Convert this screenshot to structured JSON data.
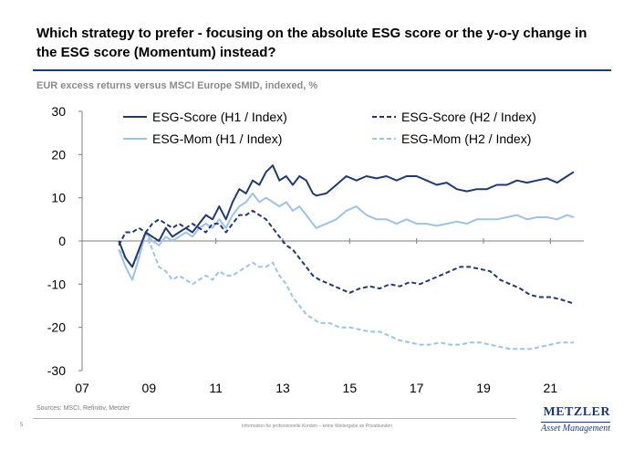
{
  "header": {
    "title": "Which strategy to prefer - focusing on the absolute ESG score or the y-o-y change in the ESG score (Momentum) instead?",
    "subtitle": "EUR excess returns versus MSCI Europe SMID, indexed, %"
  },
  "footer": {
    "sources": "Sources: MSCI, Refinitiv, Metzler",
    "page_number": "5",
    "disclaimer": "Information für professionelle Kunden – keine Weitergabe an Privatkunden",
    "logo_line1": "METZLER",
    "logo_line2": "Asset Management"
  },
  "colors": {
    "dark": "#1f3a73",
    "light": "#9dc3e6",
    "rule": "#1f3a73"
  },
  "chart_data": {
    "type": "line",
    "title": "",
    "xlabel": "",
    "ylabel": "",
    "xlim": [
      2007,
      2022
    ],
    "ylim": [
      -30,
      30
    ],
    "x_ticks": [
      "07",
      "09",
      "11",
      "13",
      "15",
      "17",
      "19",
      "21"
    ],
    "y_ticks": [
      "30",
      "20",
      "10",
      "0",
      "-10",
      "-20",
      "-30"
    ],
    "grid": false,
    "legend": "top",
    "series": [
      {
        "name": "ESG-Score (H1 / Index)",
        "color": "#1f3a73",
        "dashed": false,
        "points": [
          [
            2008.1,
            0
          ],
          [
            2008.3,
            -4
          ],
          [
            2008.5,
            -6
          ],
          [
            2008.7,
            -2
          ],
          [
            2008.9,
            2
          ],
          [
            2009.1,
            1
          ],
          [
            2009.3,
            0
          ],
          [
            2009.5,
            3
          ],
          [
            2009.7,
            1
          ],
          [
            2009.9,
            2
          ],
          [
            2010.1,
            3
          ],
          [
            2010.3,
            2
          ],
          [
            2010.5,
            4
          ],
          [
            2010.7,
            6
          ],
          [
            2010.9,
            5
          ],
          [
            2011.1,
            8
          ],
          [
            2011.3,
            5
          ],
          [
            2011.5,
            9
          ],
          [
            2011.7,
            12
          ],
          [
            2011.9,
            11
          ],
          [
            2012.1,
            14
          ],
          [
            2012.3,
            13
          ],
          [
            2012.5,
            16
          ],
          [
            2012.7,
            17.5
          ],
          [
            2012.9,
            14
          ],
          [
            2013.1,
            15
          ],
          [
            2013.3,
            13
          ],
          [
            2013.5,
            15
          ],
          [
            2013.7,
            14
          ],
          [
            2013.9,
            11
          ],
          [
            2014.0,
            10.5
          ],
          [
            2014.3,
            11
          ],
          [
            2014.6,
            13
          ],
          [
            2014.9,
            15
          ],
          [
            2015.2,
            14
          ],
          [
            2015.5,
            15
          ],
          [
            2015.8,
            14.5
          ],
          [
            2016.1,
            15
          ],
          [
            2016.4,
            14
          ],
          [
            2016.7,
            15
          ],
          [
            2017.0,
            15
          ],
          [
            2017.3,
            14
          ],
          [
            2017.6,
            13
          ],
          [
            2017.9,
            13.5
          ],
          [
            2018.2,
            12
          ],
          [
            2018.5,
            11.5
          ],
          [
            2018.8,
            12
          ],
          [
            2019.1,
            12
          ],
          [
            2019.4,
            13
          ],
          [
            2019.7,
            13
          ],
          [
            2020.0,
            14
          ],
          [
            2020.3,
            13.5
          ],
          [
            2020.6,
            14
          ],
          [
            2020.9,
            14.5
          ],
          [
            2021.2,
            13.5
          ],
          [
            2021.5,
            15
          ],
          [
            2021.7,
            16
          ]
        ]
      },
      {
        "name": "ESG-Score (H2 / Index)",
        "color": "#1f3a73",
        "dashed": true,
        "points": [
          [
            2008.1,
            -1
          ],
          [
            2008.3,
            2
          ],
          [
            2008.5,
            2
          ],
          [
            2008.7,
            3
          ],
          [
            2008.9,
            2
          ],
          [
            2009.1,
            4
          ],
          [
            2009.3,
            5
          ],
          [
            2009.5,
            4
          ],
          [
            2009.7,
            3
          ],
          [
            2009.9,
            4
          ],
          [
            2010.1,
            3
          ],
          [
            2010.3,
            4
          ],
          [
            2010.5,
            3
          ],
          [
            2010.7,
            2
          ],
          [
            2010.9,
            4
          ],
          [
            2011.1,
            4
          ],
          [
            2011.3,
            2
          ],
          [
            2011.5,
            4
          ],
          [
            2011.7,
            6
          ],
          [
            2011.9,
            6
          ],
          [
            2012.1,
            7
          ],
          [
            2012.3,
            6
          ],
          [
            2012.5,
            5
          ],
          [
            2012.7,
            3
          ],
          [
            2012.9,
            1
          ],
          [
            2013.1,
            -1
          ],
          [
            2013.3,
            -2
          ],
          [
            2013.5,
            -4
          ],
          [
            2013.7,
            -6
          ],
          [
            2013.9,
            -8
          ],
          [
            2014.1,
            -9
          ],
          [
            2014.4,
            -10
          ],
          [
            2014.7,
            -11
          ],
          [
            2015.0,
            -12
          ],
          [
            2015.3,
            -11
          ],
          [
            2015.6,
            -10.5
          ],
          [
            2015.9,
            -11
          ],
          [
            2016.2,
            -10
          ],
          [
            2016.5,
            -10.5
          ],
          [
            2016.8,
            -9.5
          ],
          [
            2017.1,
            -10
          ],
          [
            2017.4,
            -9
          ],
          [
            2017.7,
            -8
          ],
          [
            2018.0,
            -7
          ],
          [
            2018.3,
            -6
          ],
          [
            2018.6,
            -6
          ],
          [
            2018.9,
            -6.5
          ],
          [
            2019.2,
            -7
          ],
          [
            2019.5,
            -9
          ],
          [
            2019.8,
            -10
          ],
          [
            2020.1,
            -11
          ],
          [
            2020.4,
            -12.5
          ],
          [
            2020.7,
            -13
          ],
          [
            2021.0,
            -13
          ],
          [
            2021.3,
            -13.5
          ],
          [
            2021.7,
            -14.5
          ]
        ]
      },
      {
        "name": "ESG-Mom (H1 / Index)",
        "color": "#9dc3e6",
        "dashed": false,
        "points": [
          [
            2008.1,
            -2
          ],
          [
            2008.3,
            -6
          ],
          [
            2008.5,
            -9
          ],
          [
            2008.7,
            -4
          ],
          [
            2008.9,
            2
          ],
          [
            2009.1,
            0
          ],
          [
            2009.3,
            -1
          ],
          [
            2009.5,
            1
          ],
          [
            2009.7,
            0
          ],
          [
            2009.9,
            1
          ],
          [
            2010.1,
            2
          ],
          [
            2010.3,
            1
          ],
          [
            2010.5,
            3
          ],
          [
            2010.7,
            4
          ],
          [
            2010.9,
            3
          ],
          [
            2011.1,
            5
          ],
          [
            2011.3,
            3
          ],
          [
            2011.5,
            6
          ],
          [
            2011.7,
            8
          ],
          [
            2011.9,
            9
          ],
          [
            2012.1,
            11
          ],
          [
            2012.3,
            9
          ],
          [
            2012.5,
            10
          ],
          [
            2012.7,
            9
          ],
          [
            2012.9,
            8
          ],
          [
            2013.1,
            9
          ],
          [
            2013.3,
            7
          ],
          [
            2013.5,
            8
          ],
          [
            2013.7,
            6
          ],
          [
            2013.9,
            4
          ],
          [
            2014.0,
            3
          ],
          [
            2014.3,
            4
          ],
          [
            2014.6,
            5
          ],
          [
            2014.9,
            7
          ],
          [
            2015.2,
            8
          ],
          [
            2015.5,
            6
          ],
          [
            2015.8,
            5
          ],
          [
            2016.1,
            5
          ],
          [
            2016.4,
            4
          ],
          [
            2016.7,
            5
          ],
          [
            2017.0,
            4
          ],
          [
            2017.3,
            4
          ],
          [
            2017.6,
            3.5
          ],
          [
            2017.9,
            4
          ],
          [
            2018.2,
            4.5
          ],
          [
            2018.5,
            4
          ],
          [
            2018.8,
            5
          ],
          [
            2019.1,
            5
          ],
          [
            2019.4,
            5
          ],
          [
            2019.7,
            5.5
          ],
          [
            2020.0,
            6
          ],
          [
            2020.3,
            5
          ],
          [
            2020.6,
            5.5
          ],
          [
            2020.9,
            5.5
          ],
          [
            2021.2,
            5
          ],
          [
            2021.5,
            6
          ],
          [
            2021.7,
            5.5
          ]
        ]
      },
      {
        "name": "ESG-Mom (H2 / Index)",
        "color": "#9dc3e6",
        "dashed": true,
        "points": [
          [
            2008.1,
            -2
          ],
          [
            2008.3,
            -4
          ],
          [
            2008.5,
            -6
          ],
          [
            2008.7,
            -3
          ],
          [
            2008.9,
            2
          ],
          [
            2009.1,
            -2
          ],
          [
            2009.3,
            -6
          ],
          [
            2009.5,
            -7
          ],
          [
            2009.7,
            -9
          ],
          [
            2009.9,
            -8
          ],
          [
            2010.1,
            -9
          ],
          [
            2010.3,
            -10
          ],
          [
            2010.5,
            -9
          ],
          [
            2010.7,
            -8
          ],
          [
            2010.9,
            -9
          ],
          [
            2011.1,
            -7
          ],
          [
            2011.3,
            -8
          ],
          [
            2011.5,
            -8
          ],
          [
            2011.7,
            -7
          ],
          [
            2011.9,
            -6
          ],
          [
            2012.1,
            -5
          ],
          [
            2012.3,
            -6
          ],
          [
            2012.5,
            -6
          ],
          [
            2012.7,
            -5
          ],
          [
            2012.9,
            -8
          ],
          [
            2013.1,
            -10
          ],
          [
            2013.3,
            -13
          ],
          [
            2013.5,
            -15
          ],
          [
            2013.7,
            -17
          ],
          [
            2013.9,
            -18
          ],
          [
            2014.1,
            -19
          ],
          [
            2014.4,
            -19
          ],
          [
            2014.7,
            -20
          ],
          [
            2015.0,
            -20
          ],
          [
            2015.3,
            -20.5
          ],
          [
            2015.6,
            -21
          ],
          [
            2015.9,
            -21
          ],
          [
            2016.2,
            -22
          ],
          [
            2016.5,
            -23
          ],
          [
            2016.8,
            -23.5
          ],
          [
            2017.1,
            -24
          ],
          [
            2017.4,
            -24
          ],
          [
            2017.7,
            -23.5
          ],
          [
            2018.0,
            -24
          ],
          [
            2018.3,
            -24
          ],
          [
            2018.6,
            -23.5
          ],
          [
            2018.9,
            -23.5
          ],
          [
            2019.2,
            -24
          ],
          [
            2019.5,
            -24.5
          ],
          [
            2019.8,
            -25
          ],
          [
            2020.1,
            -25
          ],
          [
            2020.4,
            -25
          ],
          [
            2020.7,
            -24.5
          ],
          [
            2021.0,
            -24
          ],
          [
            2021.3,
            -23.5
          ],
          [
            2021.7,
            -23.5
          ]
        ]
      }
    ]
  }
}
